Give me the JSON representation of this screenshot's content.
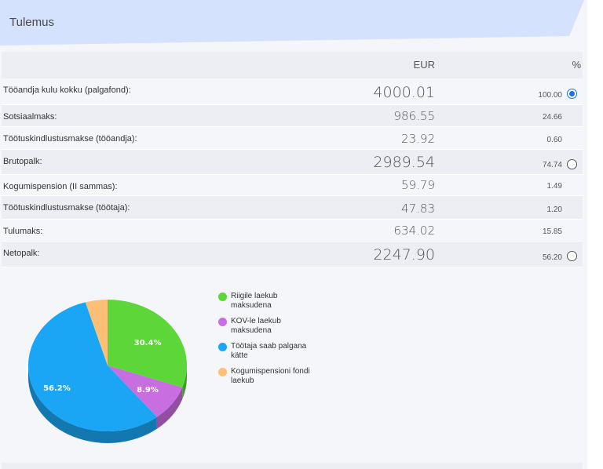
{
  "header": {
    "title": "Tulemus"
  },
  "table": {
    "col_eur": "EUR",
    "col_pct": "%",
    "rows": [
      {
        "label": "Tööandja kulu kokku (palgafond):",
        "eur": "4000.01",
        "pct": "100.00"
      },
      {
        "label": "Sotsiaalmaks:",
        "eur": "986.55",
        "pct": "24.66"
      },
      {
        "label": "Töötuskindlustusmakse (tööandja):",
        "eur": "23.92",
        "pct": "0.60"
      },
      {
        "label": "Brutopalk:",
        "eur": "2989.54",
        "pct": "74.74"
      },
      {
        "label": "Kogumispension (II sammas):",
        "eur": "59.79",
        "pct": "1.49"
      },
      {
        "label": "Töötuskindlustusmakse (töötaja):",
        "eur": "47.83",
        "pct": "1.20"
      },
      {
        "label": "Tulumaks:",
        "eur": "634.02",
        "pct": "15.85"
      },
      {
        "label": "Netopalk:",
        "eur": "2247.90",
        "pct": "56.20"
      }
    ],
    "selected_radio": "Tööandja kulu kokku (palgafond):"
  },
  "chart_data": {
    "type": "pie",
    "title": "",
    "categories": [
      "Riigile laekub maksudena",
      "KOV-le laekub maksudena",
      "Töötaja saab palgana kätte",
      "Kogumispensioni fondi laekub"
    ],
    "values": [
      30.4,
      8.9,
      56.2,
      4.5
    ],
    "labels": [
      "30.4%",
      "8.9%",
      "56.2%",
      ""
    ],
    "colors": [
      "#5dd63a",
      "#c96ee0",
      "#1ba6f5",
      "#fbbf78"
    ],
    "legend_position": "right"
  },
  "legend": {
    "items": [
      {
        "line1": "Riigile laekub",
        "line2": "maksudena",
        "color": "#5dd63a"
      },
      {
        "line1": "KOV-le laekub",
        "line2": "maksudena",
        "color": "#c96ee0"
      },
      {
        "line1": "Töötaja saab palgana",
        "line2": "kätte",
        "color": "#1ba6f5"
      },
      {
        "line1": "Kogumispensioni fondi",
        "line2": "laekub",
        "color": "#fbbf78"
      }
    ]
  }
}
